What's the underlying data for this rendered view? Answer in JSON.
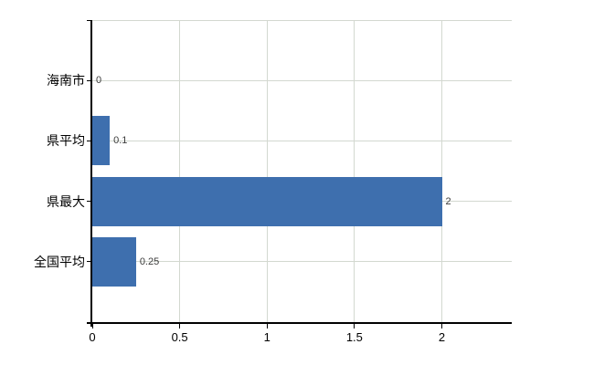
{
  "chart_data": {
    "type": "bar",
    "orientation": "horizontal",
    "title": "",
    "xlabel": "",
    "ylabel": "",
    "categories": [
      "海南市",
      "県平均",
      "県最大",
      "全国平均"
    ],
    "values": [
      0,
      0.1,
      2,
      0.25
    ],
    "value_labels": [
      "0",
      "0.1",
      "2",
      "0.25"
    ],
    "xlim": [
      0,
      2.4
    ],
    "xticks": [
      0,
      0.5,
      1,
      1.5,
      2
    ],
    "xtick_labels": [
      "0",
      "0.5",
      "1",
      "1.5",
      "2"
    ],
    "grid": true,
    "legend": false,
    "colors": {
      "bar": "#3e6fae",
      "gridline": "#d3d8d0",
      "axis": "#000000",
      "category_label": "#000000",
      "tick_label": "#000000",
      "value_label": "#3c3c3c",
      "background": "#ffffff"
    }
  }
}
